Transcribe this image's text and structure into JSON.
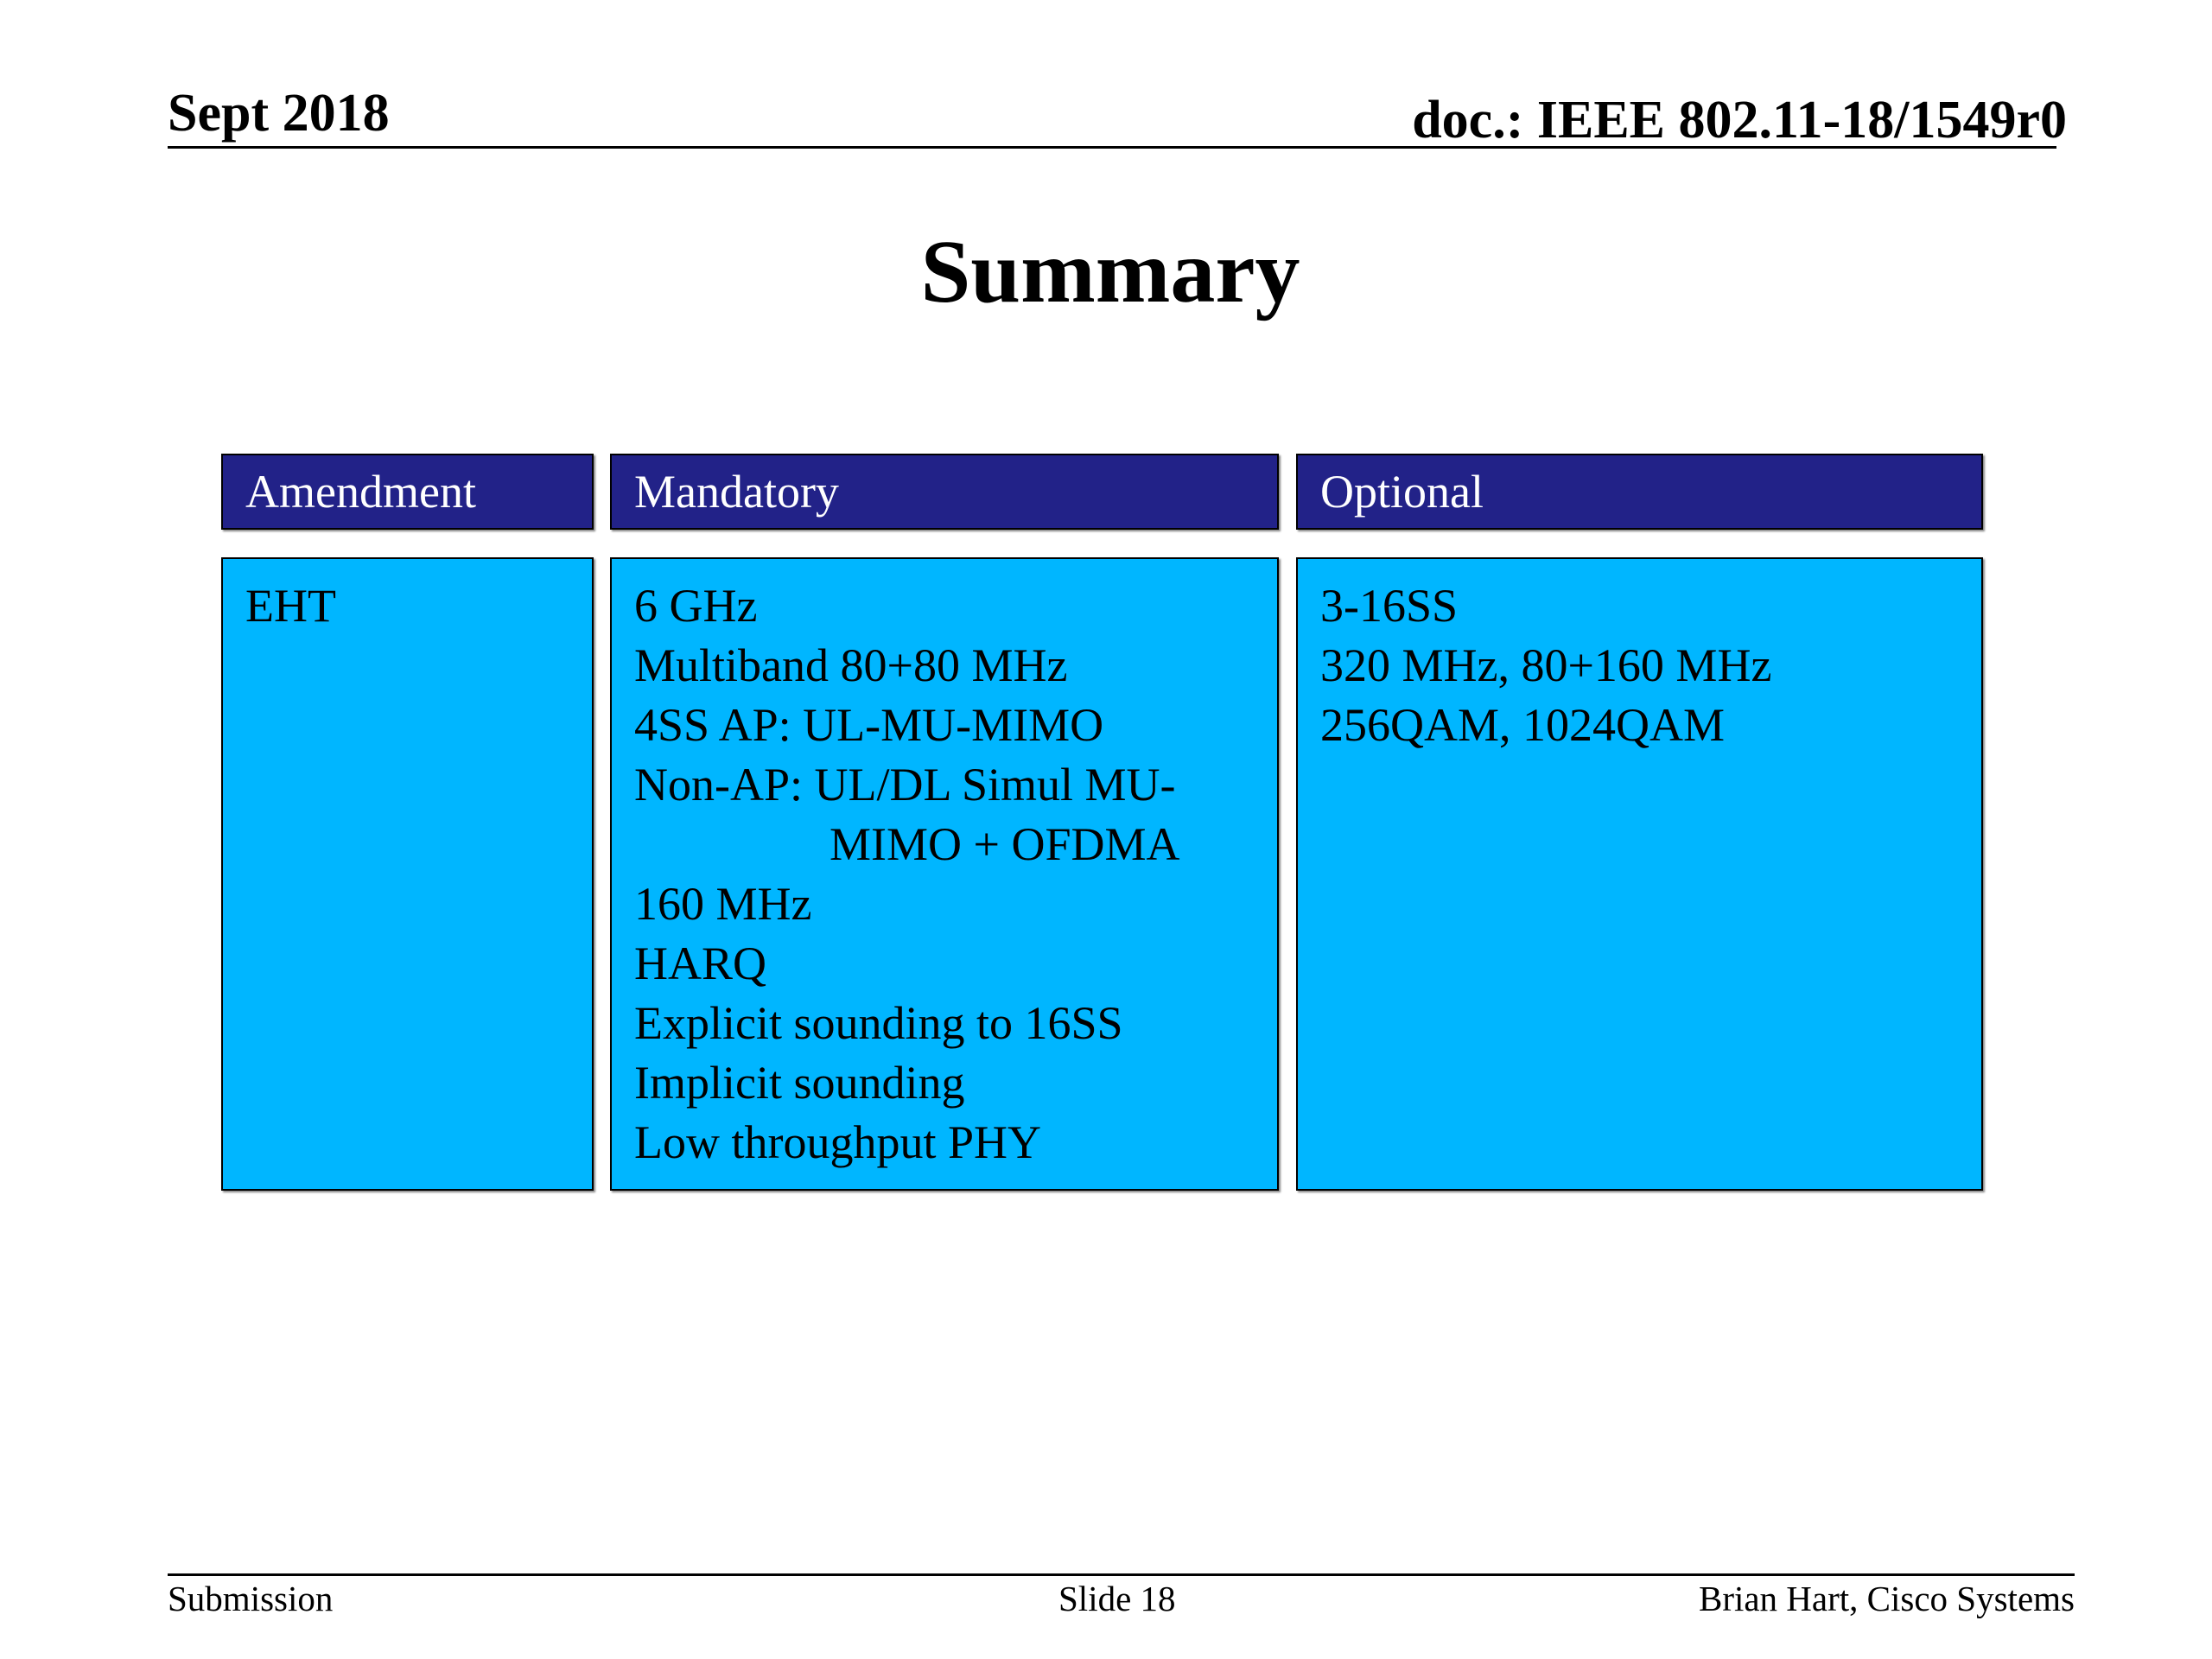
{
  "header": {
    "date": "Sept 2018",
    "doc": "doc.: IEEE 802.11-18/1549r0"
  },
  "title": "Summary",
  "table": {
    "headers": [
      "Amendment",
      "Mandatory",
      "Optional"
    ],
    "amendment": [
      "EHT"
    ],
    "mandatory": [
      "6 GHz",
      "Multiband 80+80 MHz",
      "4SS AP: UL-MU-MIMO",
      "Non-AP: UL/DL Simul MU-",
      "MIMO + OFDMA",
      "160 MHz",
      "HARQ",
      "Explicit sounding to 16SS",
      "Implicit sounding",
      "Low throughput PHY"
    ],
    "optional": [
      "3-16SS",
      "320 MHz, 80+160 MHz",
      "256QAM, 1024QAM"
    ]
  },
  "footer": {
    "left": "Submission",
    "center": "Slide 18",
    "right": "Brian Hart, Cisco Systems"
  },
  "colors": {
    "header_fill": "#222288",
    "cell_fill": "#00b6ff"
  }
}
